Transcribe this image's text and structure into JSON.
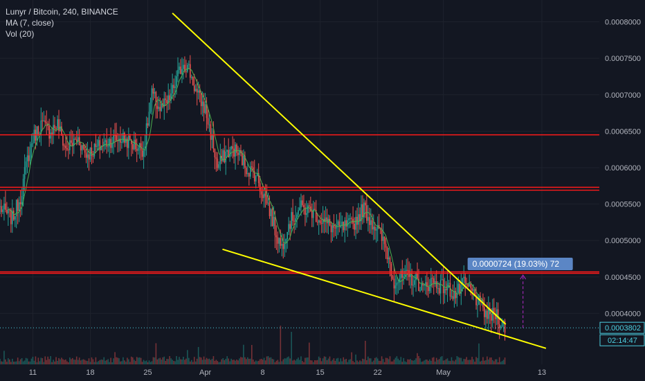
{
  "header": {
    "symbol": "Lunyr / Bitcoin, 240, BINANCE",
    "ma_label": "MA (7, close)",
    "vol_label": "Vol (20)"
  },
  "colors": {
    "background": "#131722",
    "grid": "#1e222d",
    "bull": "#26a69a",
    "bear": "#ef5350",
    "ma": "#4caf50",
    "trendline": "#ffff00",
    "hline": "#ff1a1a",
    "last_price_line": "#4dd0e1",
    "measure": "#9c27b0",
    "measure_label_bg": "#5b86c5"
  },
  "chart_data": {
    "type": "candlestick",
    "symbol": "Lunyr / Bitcoin",
    "interval": "240",
    "exchange": "BINANCE",
    "indicators": [
      "MA (7, close)",
      "Vol (20)"
    ],
    "y_ticks": [
      "0.0008000",
      "0.0007500",
      "0.0007000",
      "0.0006500",
      "0.0006000",
      "0.0005500",
      "0.0005000",
      "0.0004500",
      "0.0004000"
    ],
    "ylim": [
      0.00033,
      0.00083
    ],
    "x_ticks": [
      "11",
      "18",
      "25",
      "Apr",
      "8",
      "15",
      "22",
      "May",
      "13"
    ],
    "x_tick_days": [
      11,
      18,
      25,
      32,
      39,
      46,
      53,
      61,
      73
    ],
    "xlim": [
      7.0,
      80.0
    ],
    "horizontal_lines": [
      0.000645,
      0.000573,
      0.000569,
      0.000457,
      0.000455
    ],
    "trendlines": [
      {
        "from": [
          28.0,
          0.000812
        ],
        "to": [
          68.6,
          0.000385
        ]
      },
      {
        "from": [
          34.1,
          0.000488
        ],
        "to": [
          73.5,
          0.000352
        ]
      }
    ],
    "anchor_points": [
      [
        7.0,
        0.000545
      ],
      [
        8.5,
        0.00053
      ],
      [
        9.5,
        0.00056
      ],
      [
        10.3,
        0.00061
      ],
      [
        11.0,
        0.00064
      ],
      [
        12.0,
        0.00066
      ],
      [
        13.0,
        0.00065
      ],
      [
        14.0,
        0.00066
      ],
      [
        15.0,
        0.000625
      ],
      [
        16.5,
        0.00064
      ],
      [
        17.5,
        0.000618
      ],
      [
        18.5,
        0.000625
      ],
      [
        20.5,
        0.000638
      ],
      [
        22.0,
        0.00064
      ],
      [
        23.5,
        0.00063
      ],
      [
        24.5,
        0.000625
      ],
      [
        25.5,
        0.0007
      ],
      [
        26.5,
        0.00068
      ],
      [
        27.5,
        0.00069
      ],
      [
        28.5,
        0.00072
      ],
      [
        29.3,
        0.000745
      ],
      [
        30.0,
        0.000735
      ],
      [
        31.0,
        0.0007
      ],
      [
        32.0,
        0.00068
      ],
      [
        32.8,
        0.00064
      ],
      [
        33.5,
        0.0006
      ],
      [
        34.5,
        0.00062
      ],
      [
        35.5,
        0.000625
      ],
      [
        36.3,
        0.000615
      ],
      [
        37.0,
        0.0006
      ],
      [
        38.2,
        0.00059
      ],
      [
        38.8,
        0.00057
      ],
      [
        39.5,
        0.000555
      ],
      [
        40.5,
        0.000515
      ],
      [
        41.3,
        0.00049
      ],
      [
        42.0,
        0.00052
      ],
      [
        43.5,
        0.000545
      ],
      [
        45.0,
        0.00054
      ],
      [
        46.5,
        0.000525
      ],
      [
        48.0,
        0.000515
      ],
      [
        50.0,
        0.000522
      ],
      [
        51.3,
        0.000545
      ],
      [
        52.0,
        0.00053
      ],
      [
        53.0,
        0.000515
      ],
      [
        54.0,
        0.00049
      ],
      [
        55.0,
        0.000445
      ],
      [
        56.5,
        0.00045
      ],
      [
        57.8,
        0.000445
      ],
      [
        58.5,
        0.000432
      ],
      [
        59.5,
        0.000445
      ],
      [
        60.5,
        0.000438
      ],
      [
        61.5,
        0.000435
      ],
      [
        62.5,
        0.000425
      ],
      [
        63.5,
        0.00044
      ],
      [
        64.5,
        0.00043
      ],
      [
        65.5,
        0.00041
      ],
      [
        66.5,
        0.000395
      ],
      [
        67.5,
        0.0004
      ],
      [
        68.0,
        0.000385
      ],
      [
        68.6,
        0.000381
      ]
    ],
    "last_price": "0.0003802",
    "countdown": "02:14:47",
    "measure": {
      "label": "0.0000724 (19.03%) 72",
      "from": 0.0003802,
      "to": 0.0004526,
      "x_day": 70.7
    }
  }
}
